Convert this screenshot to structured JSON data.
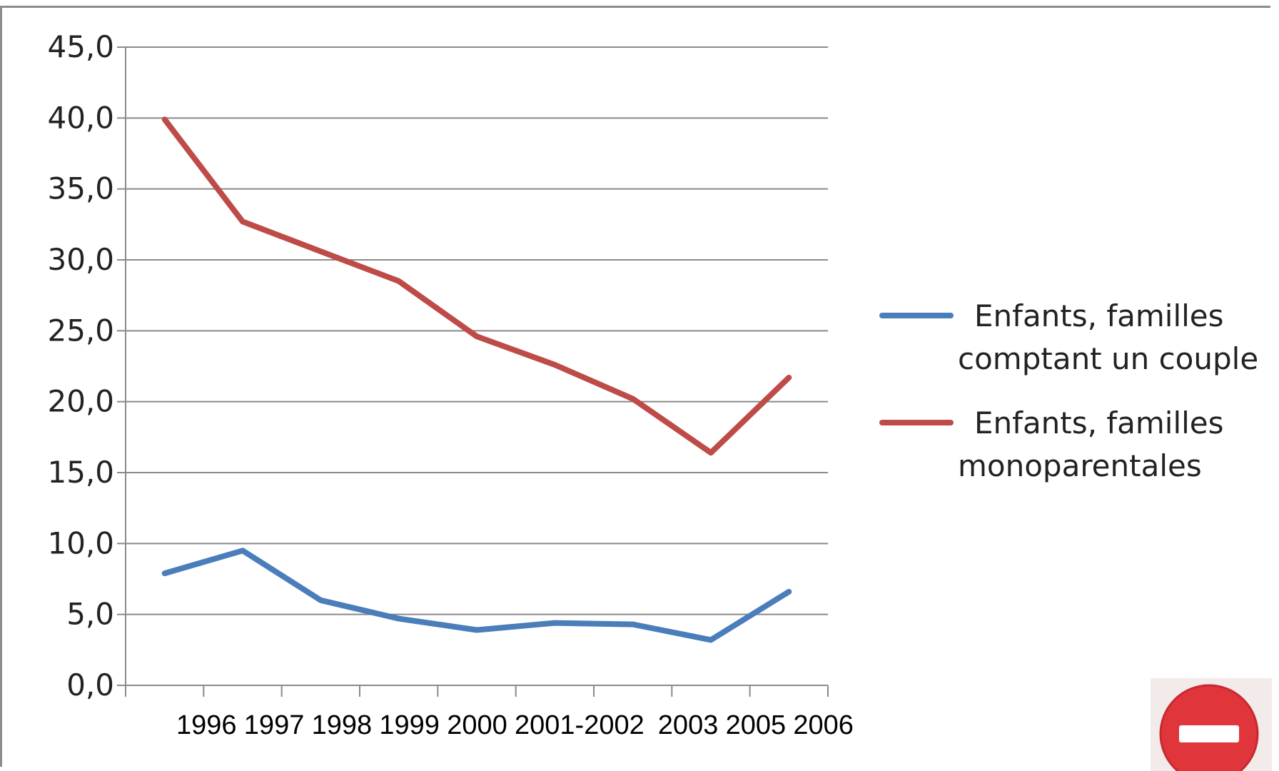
{
  "chart_data": {
    "type": "line",
    "title": "",
    "xlabel": "",
    "ylabel": "",
    "categories": [
      "1996",
      "1997",
      "1998",
      "1999",
      "2000",
      "2001-2002",
      "2003",
      "2005",
      "2006"
    ],
    "y_ticks": [
      "0,0",
      "5,0",
      "10,0",
      "15,0",
      "20,0",
      "25,0",
      "30,0",
      "35,0",
      "40,0",
      "45,0"
    ],
    "ylim": [
      0,
      45
    ],
    "grid": true,
    "legend_position": "right",
    "series": [
      {
        "name": "Enfants, familles comptant un couple",
        "legend_lines": [
          "Enfants, familles",
          "comptant un couple"
        ],
        "color": "#4a7ebb",
        "values": [
          7.9,
          9.5,
          6.0,
          4.7,
          3.9,
          4.4,
          4.3,
          3.2,
          6.6
        ]
      },
      {
        "name": "Enfants, familles monoparentales",
        "legend_lines": [
          "Enfants, familles",
          "monoparentales"
        ],
        "color": "#be4b48",
        "values": [
          39.9,
          32.7,
          30.6,
          28.5,
          24.6,
          22.6,
          20.2,
          16.4,
          21.7
        ]
      }
    ]
  },
  "badge": {
    "icon": "no-entry-icon",
    "color": "#e0353b"
  }
}
